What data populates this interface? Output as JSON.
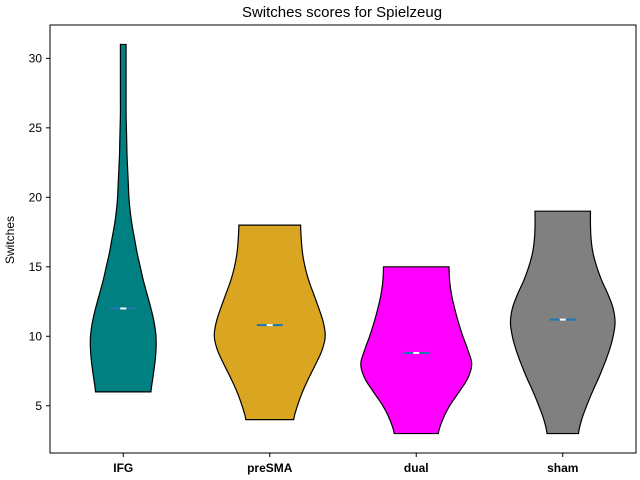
{
  "chart_data": {
    "type": "violin",
    "title": "Switches scores for Spielzeug",
    "xlabel": "",
    "ylabel": "Switches",
    "ylim": [
      1.6,
      32.4
    ],
    "yticks": [
      5,
      10,
      15,
      20,
      25,
      30
    ],
    "grid": false,
    "categories": [
      "IFG",
      "preSMA",
      "dual",
      "sham"
    ],
    "colors": [
      "#008080",
      "#DAA520",
      "#FF00FF",
      "#808080"
    ],
    "median_color": "#1f77b4",
    "series": [
      {
        "category": "IFG",
        "min": 6,
        "max": 31,
        "median": 12,
        "profile": [
          [
            6,
            0.44
          ],
          [
            7,
            0.47
          ],
          [
            8,
            0.5
          ],
          [
            9,
            0.52
          ],
          [
            10,
            0.52
          ],
          [
            11,
            0.49
          ],
          [
            12,
            0.44
          ],
          [
            13,
            0.38
          ],
          [
            14,
            0.32
          ],
          [
            15,
            0.27
          ],
          [
            16,
            0.22
          ],
          [
            17,
            0.18
          ],
          [
            18,
            0.14
          ],
          [
            19,
            0.11
          ],
          [
            20,
            0.09
          ],
          [
            21,
            0.08
          ],
          [
            22,
            0.07
          ],
          [
            23,
            0.06
          ],
          [
            24,
            0.055
          ],
          [
            25,
            0.05
          ],
          [
            26,
            0.045
          ],
          [
            27,
            0.045
          ],
          [
            28,
            0.045
          ],
          [
            29,
            0.045
          ],
          [
            30,
            0.045
          ],
          [
            31,
            0.045
          ]
        ]
      },
      {
        "category": "preSMA",
        "min": 4,
        "max": 18,
        "median": 10.8,
        "profile": [
          [
            4,
            0.38
          ],
          [
            5,
            0.44
          ],
          [
            6,
            0.52
          ],
          [
            7,
            0.62
          ],
          [
            8,
            0.73
          ],
          [
            9,
            0.83
          ],
          [
            10,
            0.88
          ],
          [
            11,
            0.85
          ],
          [
            12,
            0.78
          ],
          [
            13,
            0.7
          ],
          [
            14,
            0.62
          ],
          [
            15,
            0.56
          ],
          [
            16,
            0.52
          ],
          [
            17,
            0.5
          ],
          [
            18,
            0.49
          ]
        ]
      },
      {
        "category": "dual",
        "min": 3,
        "max": 15,
        "median": 8.8,
        "profile": [
          [
            3,
            0.35
          ],
          [
            4,
            0.42
          ],
          [
            5,
            0.53
          ],
          [
            6,
            0.68
          ],
          [
            7,
            0.82
          ],
          [
            8,
            0.88
          ],
          [
            9,
            0.82
          ],
          [
            10,
            0.74
          ],
          [
            11,
            0.67
          ],
          [
            12,
            0.61
          ],
          [
            13,
            0.56
          ],
          [
            14,
            0.53
          ],
          [
            15,
            0.52
          ]
        ]
      },
      {
        "category": "sham",
        "min": 3,
        "max": 19,
        "median": 11.2,
        "profile": [
          [
            3,
            0.25
          ],
          [
            4,
            0.3
          ],
          [
            5,
            0.38
          ],
          [
            6,
            0.47
          ],
          [
            7,
            0.57
          ],
          [
            8,
            0.66
          ],
          [
            9,
            0.74
          ],
          [
            10,
            0.8
          ],
          [
            11,
            0.83
          ],
          [
            12,
            0.8
          ],
          [
            13,
            0.72
          ],
          [
            14,
            0.62
          ],
          [
            15,
            0.54
          ],
          [
            16,
            0.48
          ],
          [
            17,
            0.45
          ],
          [
            18,
            0.44
          ],
          [
            19,
            0.44
          ]
        ]
      }
    ]
  }
}
